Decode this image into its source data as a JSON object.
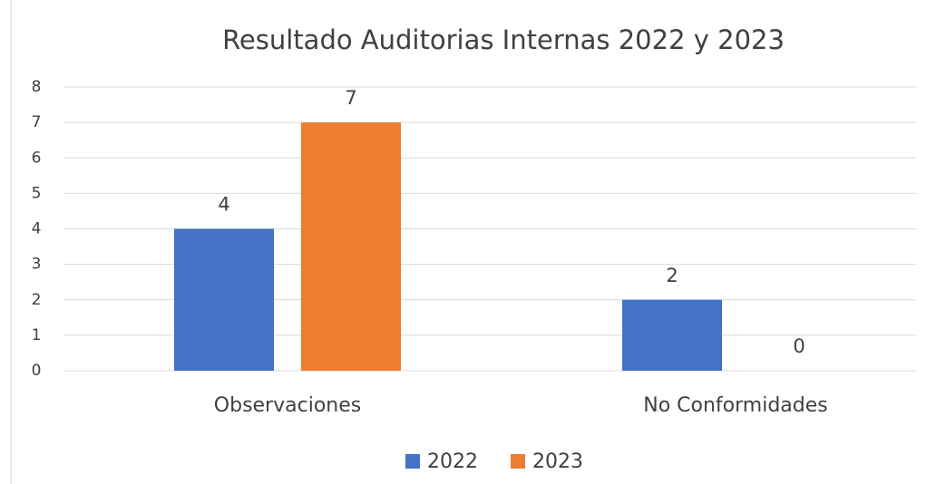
{
  "chart_data": {
    "type": "bar",
    "title": "Resultado Auditorias Internas 2022 y 2023",
    "categories": [
      "Observaciones",
      "No Conformidades"
    ],
    "series": [
      {
        "name": "2022",
        "color": "#4472c4",
        "values": [
          4,
          2
        ]
      },
      {
        "name": "2023",
        "color": "#ed7d31",
        "values": [
          7,
          0
        ]
      }
    ],
    "ylim": [
      0,
      8
    ],
    "yticks": [
      0,
      1,
      2,
      3,
      4,
      5,
      6,
      7,
      8
    ],
    "grid": true,
    "legend": "bottom"
  }
}
